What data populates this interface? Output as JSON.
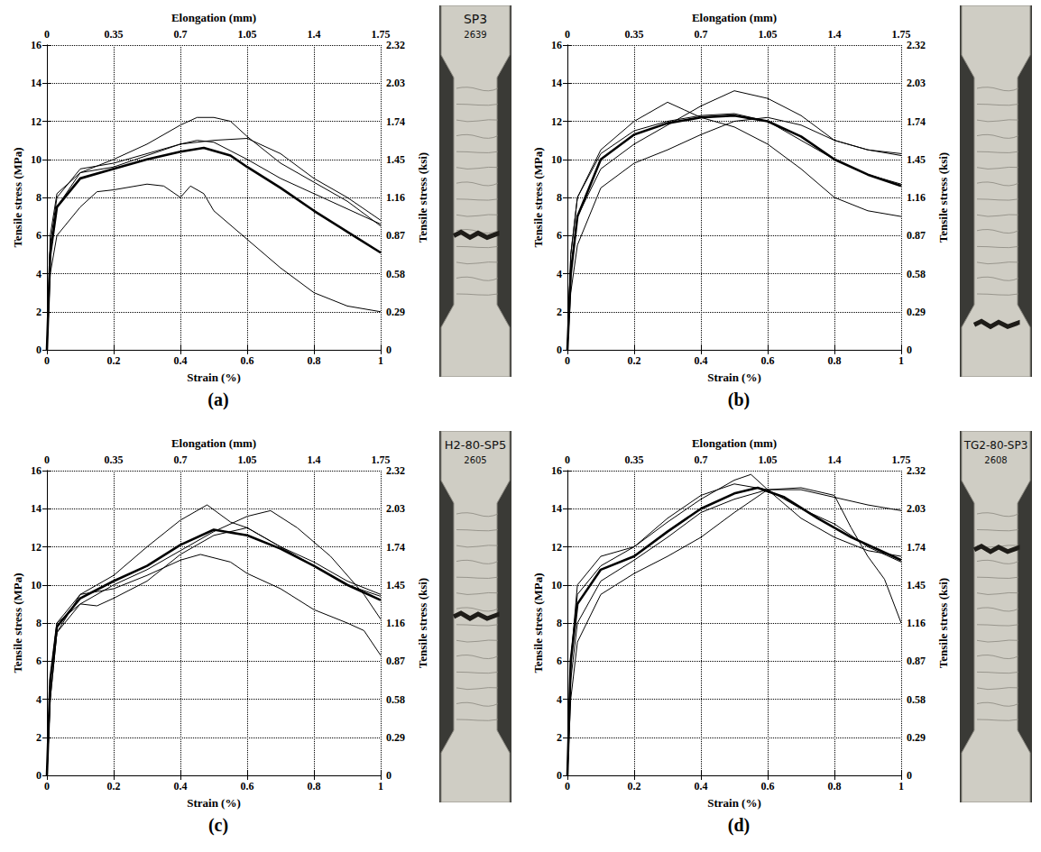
{
  "chart_data": [
    {
      "panel": "(a)",
      "type": "line",
      "xlabel": "Strain (%)",
      "ylabel": "Tensile stress (MPa)",
      "x2label": "Elongation (mm)",
      "y2label": "Tensile stress (ksi)",
      "xlim": [
        0,
        1
      ],
      "xticks": [
        0,
        0.2,
        0.4,
        0.6,
        0.8,
        1
      ],
      "ylim": [
        0,
        16
      ],
      "yticks": [
        0,
        2,
        4,
        6,
        8,
        10,
        12,
        14,
        16
      ],
      "x2lim": [
        0,
        1.75
      ],
      "x2ticks": [
        0,
        0.35,
        0.7,
        1.05,
        1.4,
        1.75
      ],
      "y2lim": [
        0,
        2.32
      ],
      "y2ticks": [
        0,
        0.29,
        0.58,
        0.87,
        1.16,
        1.45,
        1.74,
        2.03,
        2.32
      ],
      "grid": true,
      "specimen_label": [
        "SP3",
        "2639"
      ],
      "series": [
        {
          "color": "#000000",
          "line_style": "thin",
          "x": [
            0,
            0.01,
            0.03,
            0.1,
            0.2,
            0.3,
            0.4,
            0.45,
            0.5,
            0.55,
            0.6,
            0.7,
            0.8,
            0.9,
            1.0
          ],
          "values": [
            0,
            5,
            7.5,
            9.3,
            10,
            10.8,
            11.8,
            12.2,
            12.2,
            12,
            11.2,
            9.8,
            8.8,
            7.8,
            6.5
          ]
        },
        {
          "color": "#000000",
          "line_style": "thin",
          "x": [
            0,
            0.01,
            0.03,
            0.1,
            0.2,
            0.3,
            0.4,
            0.5,
            0.6,
            0.7,
            0.8,
            0.9,
            1.0
          ],
          "values": [
            0,
            5.5,
            8,
            9.5,
            9.8,
            10.3,
            10.8,
            11,
            11.1,
            10.3,
            9,
            8,
            6.8
          ]
        },
        {
          "color": "#000000",
          "line_style": "thin",
          "x": [
            0,
            0.01,
            0.03,
            0.1,
            0.2,
            0.3,
            0.4,
            0.45,
            0.5,
            0.6,
            0.7,
            0.8,
            0.9,
            1.0
          ],
          "values": [
            0,
            6,
            8.2,
            9.3,
            9.6,
            10.2,
            10.8,
            11,
            10.9,
            10,
            9,
            8.2,
            7.4,
            6.6
          ]
        },
        {
          "color": "#000000",
          "line_style": "thin",
          "x": [
            0,
            0.01,
            0.03,
            0.1,
            0.15,
            0.2,
            0.3,
            0.35,
            0.4,
            0.43,
            0.47,
            0.5,
            0.6,
            0.7,
            0.8,
            0.9,
            1.0
          ],
          "values": [
            0,
            4,
            6,
            7.5,
            8.3,
            8.4,
            8.7,
            8.6,
            8,
            8.6,
            8.2,
            7.3,
            5.8,
            4.3,
            3,
            2.3,
            2
          ]
        },
        {
          "color": "#000000",
          "line_style": "thick",
          "x": [
            0,
            0.01,
            0.03,
            0.1,
            0.2,
            0.3,
            0.4,
            0.47,
            0.55,
            0.6,
            0.7,
            0.8,
            0.9,
            1.0
          ],
          "values": [
            0,
            5,
            7.5,
            9,
            9.5,
            10,
            10.4,
            10.6,
            10.2,
            9.6,
            8.5,
            7.3,
            6.2,
            5.1
          ]
        }
      ]
    },
    {
      "panel": "(b)",
      "type": "line",
      "xlabel": "Strain (%)",
      "ylabel": "Tensile stress (MPa)",
      "x2label": "Elongation (mm)",
      "y2label": "Tensile stress (ksi)",
      "xlim": [
        0,
        1
      ],
      "xticks": [
        0,
        0.2,
        0.4,
        0.6,
        0.8,
        1
      ],
      "ylim": [
        0,
        16
      ],
      "yticks": [
        0,
        2,
        4,
        6,
        8,
        10,
        12,
        14,
        16
      ],
      "x2lim": [
        0,
        1.75
      ],
      "x2ticks": [
        0,
        0.35,
        0.7,
        1.05,
        1.4,
        1.75
      ],
      "y2lim": [
        0,
        2.32
      ],
      "y2ticks": [
        0,
        0.29,
        0.58,
        0.87,
        1.16,
        1.45,
        1.74,
        2.03,
        2.32
      ],
      "grid": true,
      "series": [
        {
          "color": "#000000",
          "line_style": "thin",
          "x": [
            0,
            0.01,
            0.03,
            0.1,
            0.2,
            0.3,
            0.35,
            0.4,
            0.5,
            0.6,
            0.7,
            0.8,
            0.9,
            1.0
          ],
          "values": [
            0,
            5,
            8,
            10.5,
            12,
            13,
            12.6,
            12.2,
            11.7,
            10.8,
            9.5,
            8,
            7.3,
            7
          ]
        },
        {
          "color": "#000000",
          "line_style": "thin",
          "x": [
            0,
            0.01,
            0.03,
            0.1,
            0.2,
            0.3,
            0.4,
            0.5,
            0.6,
            0.7,
            0.8,
            0.9,
            1.0
          ],
          "values": [
            0,
            4,
            7,
            9.5,
            10.8,
            11.8,
            12.8,
            13.6,
            13.2,
            12.3,
            11,
            10.5,
            10.3
          ]
        },
        {
          "color": "#000000",
          "line_style": "thin",
          "x": [
            0,
            0.01,
            0.03,
            0.1,
            0.2,
            0.3,
            0.4,
            0.5,
            0.6,
            0.7,
            0.8,
            0.9,
            1.0
          ],
          "values": [
            0,
            5,
            8,
            10.3,
            11.5,
            12,
            12.3,
            12.4,
            12,
            11,
            10,
            9.2,
            8.7
          ]
        },
        {
          "color": "#000000",
          "line_style": "thin",
          "x": [
            0,
            0.01,
            0.03,
            0.1,
            0.2,
            0.3,
            0.4,
            0.5,
            0.6,
            0.7,
            0.8,
            0.9,
            1.0
          ],
          "values": [
            0,
            3,
            5.5,
            8.5,
            9.8,
            10.5,
            11.3,
            12,
            12.2,
            11.8,
            11,
            10.5,
            10.2
          ]
        },
        {
          "color": "#000000",
          "line_style": "thick",
          "x": [
            0,
            0.01,
            0.03,
            0.1,
            0.2,
            0.3,
            0.4,
            0.5,
            0.6,
            0.7,
            0.8,
            0.9,
            1.0
          ],
          "values": [
            0,
            4,
            7,
            10,
            11.3,
            11.9,
            12.2,
            12.3,
            12,
            11.2,
            10,
            9.2,
            8.6
          ]
        }
      ]
    },
    {
      "panel": "(c)",
      "type": "line",
      "xlabel": "Strain (%)",
      "ylabel": "Tensile stress (MPa)",
      "x2label": "Elongation (mm)",
      "y2label": "Tensile stress (ksi)",
      "xlim": [
        0,
        1
      ],
      "xticks": [
        0,
        0.2,
        0.4,
        0.6,
        0.8,
        1
      ],
      "ylim": [
        0,
        16
      ],
      "yticks": [
        0,
        2,
        4,
        6,
        8,
        10,
        12,
        14,
        16
      ],
      "x2lim": [
        0,
        1.75
      ],
      "x2ticks": [
        0,
        0.35,
        0.7,
        1.05,
        1.4,
        1.75
      ],
      "y2lim": [
        0,
        2.32
      ],
      "y2ticks": [
        0,
        0.29,
        0.58,
        0.87,
        1.16,
        1.45,
        1.74,
        2.03,
        2.32
      ],
      "grid": true,
      "specimen_label": [
        "H2-80-SP5",
        "2605"
      ],
      "series": [
        {
          "color": "#000000",
          "line_style": "thin",
          "x": [
            0,
            0.01,
            0.03,
            0.1,
            0.2,
            0.3,
            0.4,
            0.48,
            0.55,
            0.6,
            0.7,
            0.8,
            0.9,
            1.0
          ],
          "values": [
            0,
            5,
            8,
            9.5,
            10.5,
            12,
            13.4,
            14.2,
            13.3,
            13,
            12,
            11,
            10,
            9.4
          ]
        },
        {
          "color": "#000000",
          "line_style": "thin",
          "x": [
            0,
            0.01,
            0.03,
            0.1,
            0.2,
            0.3,
            0.4,
            0.5,
            0.6,
            0.67,
            0.75,
            0.85,
            0.95,
            1.0
          ],
          "values": [
            0,
            4,
            7.5,
            9,
            10,
            10.8,
            11.8,
            12.8,
            13.6,
            13.9,
            13,
            11.5,
            9.5,
            8.2
          ]
        },
        {
          "color": "#000000",
          "line_style": "thin",
          "x": [
            0,
            0.01,
            0.03,
            0.1,
            0.2,
            0.3,
            0.4,
            0.46,
            0.55,
            0.6,
            0.7,
            0.8,
            0.9,
            0.95,
            1.0
          ],
          "values": [
            0,
            4,
            7.5,
            9.5,
            9.8,
            10.5,
            11.3,
            11.6,
            11.2,
            10.6,
            9.8,
            8.7,
            8,
            7.6,
            6.3
          ]
        },
        {
          "color": "#000000",
          "line_style": "thin",
          "x": [
            0,
            0.01,
            0.03,
            0.1,
            0.15,
            0.2,
            0.3,
            0.4,
            0.5,
            0.6,
            0.7,
            0.8,
            0.9,
            1.0
          ],
          "values": [
            0,
            5,
            8,
            9,
            8.9,
            9.3,
            10.2,
            11.6,
            12.6,
            13,
            12,
            11.2,
            10.2,
            9.5
          ]
        },
        {
          "color": "#000000",
          "line_style": "thick",
          "x": [
            0,
            0.01,
            0.03,
            0.1,
            0.2,
            0.3,
            0.4,
            0.5,
            0.6,
            0.7,
            0.8,
            0.9,
            1.0
          ],
          "values": [
            0,
            5,
            7.8,
            9.3,
            10.2,
            11,
            12.1,
            12.9,
            12.6,
            11.9,
            11,
            10,
            9.2
          ]
        }
      ]
    },
    {
      "panel": "(d)",
      "type": "line",
      "xlabel": "Strain (%)",
      "ylabel": "Tensile stress (MPa)",
      "x2label": "Elongation (mm)",
      "y2label": "Tensile stress (ksi)",
      "xlim": [
        0,
        1
      ],
      "xticks": [
        0,
        0.2,
        0.4,
        0.6,
        0.8,
        1
      ],
      "ylim": [
        0,
        16
      ],
      "yticks": [
        0,
        2,
        4,
        6,
        8,
        10,
        12,
        14,
        16
      ],
      "x2lim": [
        0,
        1.75
      ],
      "x2ticks": [
        0,
        0.35,
        0.7,
        1.05,
        1.4,
        1.75
      ],
      "y2lim": [
        0,
        2.32
      ],
      "y2ticks": [
        0,
        0.29,
        0.58,
        0.87,
        1.16,
        1.45,
        1.74,
        2.03,
        2.32
      ],
      "grid": true,
      "specimen_label": [
        "TG2-80-SP3",
        "2608"
      ],
      "series": [
        {
          "color": "#000000",
          "line_style": "thin",
          "x": [
            0,
            0.01,
            0.03,
            0.1,
            0.2,
            0.3,
            0.4,
            0.5,
            0.55,
            0.6,
            0.7,
            0.8,
            0.9,
            1.0
          ],
          "values": [
            0,
            6,
            9.5,
            11,
            12,
            13.3,
            14.5,
            15.5,
            15.8,
            15,
            13.5,
            12.5,
            11.8,
            11.5
          ]
        },
        {
          "color": "#000000",
          "line_style": "thin",
          "x": [
            0,
            0.01,
            0.03,
            0.1,
            0.2,
            0.3,
            0.4,
            0.5,
            0.6,
            0.7,
            0.8,
            0.85,
            0.9,
            0.95,
            1.0
          ],
          "values": [
            0,
            5,
            8,
            10.2,
            11.3,
            12.5,
            13.8,
            14.5,
            15,
            15.1,
            14.7,
            13,
            11.5,
            10.3,
            8
          ]
        },
        {
          "color": "#000000",
          "line_style": "thin",
          "x": [
            0,
            0.01,
            0.03,
            0.1,
            0.2,
            0.3,
            0.4,
            0.5,
            0.6,
            0.7,
            0.8,
            0.9,
            1.0
          ],
          "values": [
            0,
            4,
            7,
            9.5,
            10.6,
            11.5,
            12.5,
            13.8,
            15,
            15,
            14.6,
            14.2,
            13.9
          ]
        },
        {
          "color": "#000000",
          "line_style": "thin",
          "x": [
            0,
            0.01,
            0.03,
            0.1,
            0.2,
            0.3,
            0.4,
            0.5,
            0.6,
            0.7,
            0.8,
            0.9,
            1.0
          ],
          "values": [
            0,
            6,
            10,
            11.5,
            12,
            13.5,
            14.7,
            15.3,
            15,
            14,
            13.2,
            12,
            11.2
          ]
        },
        {
          "color": "#000000",
          "line_style": "thick",
          "x": [
            0,
            0.01,
            0.03,
            0.1,
            0.2,
            0.3,
            0.4,
            0.5,
            0.57,
            0.65,
            0.75,
            0.85,
            1.0
          ],
          "values": [
            0,
            6,
            9,
            10.8,
            11.5,
            12.8,
            14,
            14.8,
            15.1,
            14.6,
            13.5,
            12.5,
            11.3
          ]
        }
      ]
    }
  ]
}
